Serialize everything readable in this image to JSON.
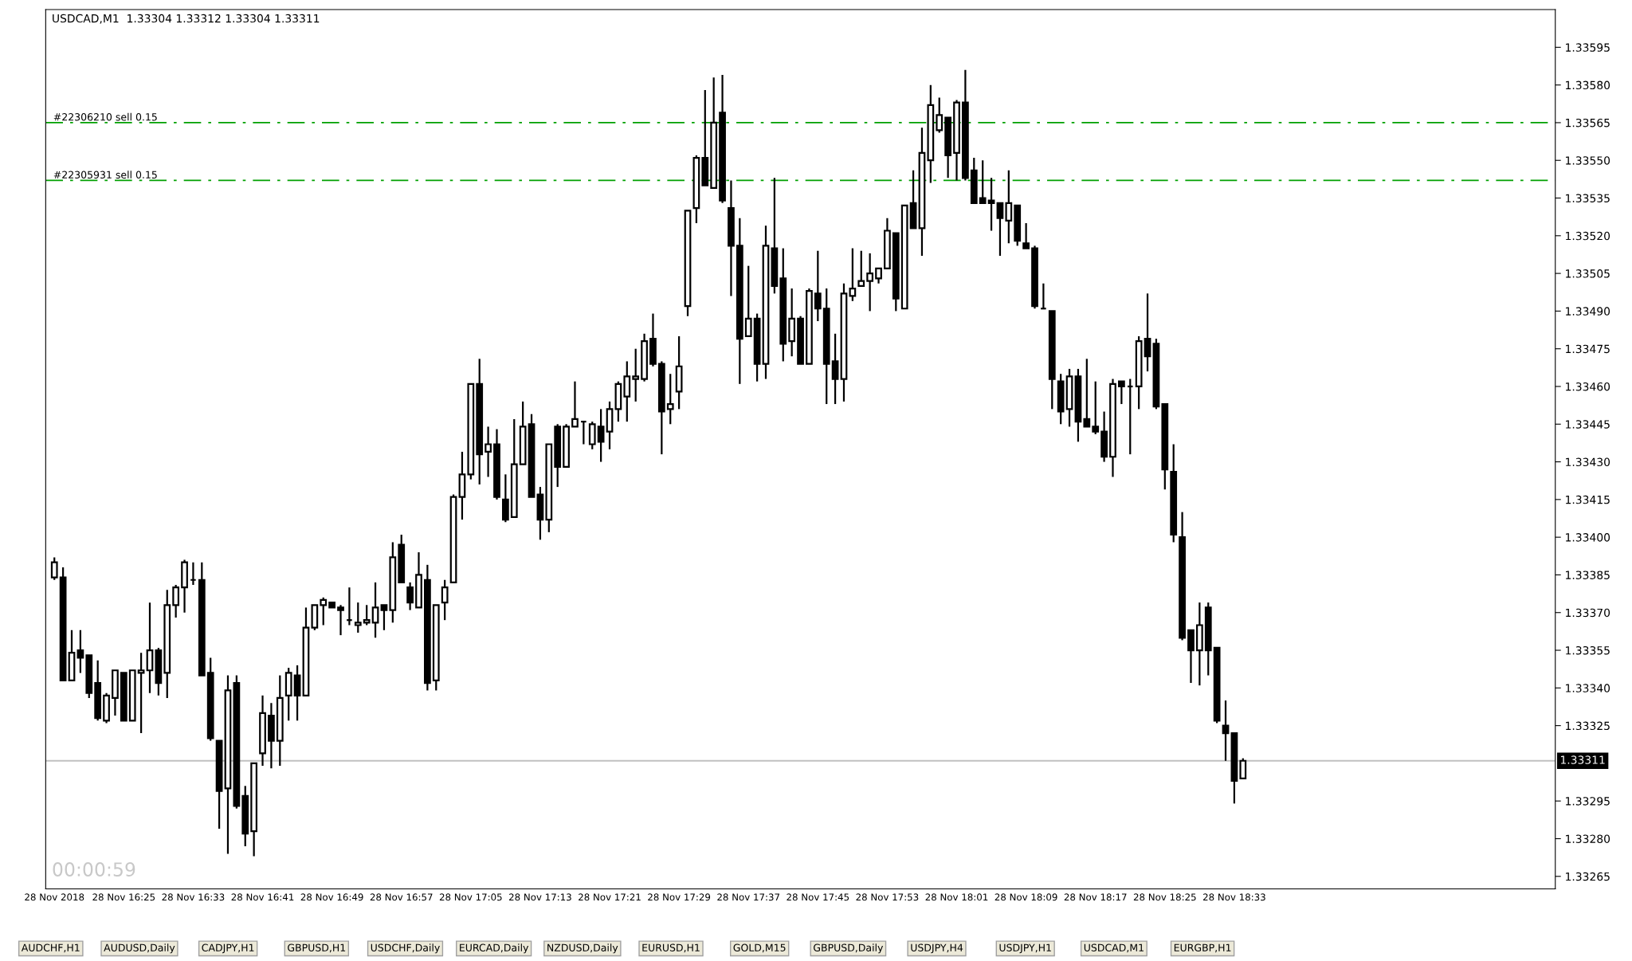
{
  "chart_data": {
    "type": "candlestick",
    "title": "USDCAD,M1  1.33304 1.33312 1.33304 1.33311",
    "x": [
      "2018-11-28T16:17",
      "2018-11-28T16:18",
      "2018-11-28T16:19",
      "2018-11-28T16:20",
      "2018-11-28T16:21",
      "2018-11-28T16:22",
      "2018-11-28T16:23",
      "2018-11-28T16:24",
      "2018-11-28T16:25",
      "2018-11-28T16:26",
      "2018-11-28T16:27",
      "2018-11-28T16:28",
      "2018-11-28T16:29",
      "2018-11-28T16:30",
      "2018-11-28T16:31",
      "2018-11-28T16:32",
      "2018-11-28T16:33",
      "2018-11-28T16:34",
      "2018-11-28T16:35",
      "2018-11-28T16:36",
      "2018-11-28T16:37",
      "2018-11-28T16:38",
      "2018-11-28T16:39",
      "2018-11-28T16:40",
      "2018-11-28T16:41",
      "2018-11-28T16:42",
      "2018-11-28T16:43",
      "2018-11-28T16:44",
      "2018-11-28T16:45",
      "2018-11-28T16:46",
      "2018-11-28T16:47",
      "2018-11-28T16:48",
      "2018-11-28T16:49",
      "2018-11-28T16:50",
      "2018-11-28T16:51",
      "2018-11-28T16:52",
      "2018-11-28T16:53",
      "2018-11-28T16:54",
      "2018-11-28T16:55",
      "2018-11-28T16:56",
      "2018-11-28T16:57",
      "2018-11-28T16:58",
      "2018-11-28T16:59",
      "2018-11-28T17:00",
      "2018-11-28T17:01",
      "2018-11-28T17:02",
      "2018-11-28T17:03",
      "2018-11-28T17:04",
      "2018-11-28T17:05",
      "2018-11-28T17:06",
      "2018-11-28T17:07",
      "2018-11-28T17:08",
      "2018-11-28T17:09",
      "2018-11-28T17:10",
      "2018-11-28T17:11",
      "2018-11-28T17:12",
      "2018-11-28T17:13",
      "2018-11-28T17:14",
      "2018-11-28T17:15",
      "2018-11-28T17:16",
      "2018-11-28T17:17",
      "2018-11-28T17:18",
      "2018-11-28T17:19",
      "2018-11-28T17:20",
      "2018-11-28T17:21",
      "2018-11-28T17:22",
      "2018-11-28T17:23",
      "2018-11-28T17:24",
      "2018-11-28T17:25",
      "2018-11-28T17:26",
      "2018-11-28T17:27",
      "2018-11-28T17:28",
      "2018-11-28T17:29",
      "2018-11-28T17:30",
      "2018-11-28T17:31",
      "2018-11-28T17:32",
      "2018-11-28T17:33",
      "2018-11-28T17:34",
      "2018-11-28T17:35",
      "2018-11-28T17:36",
      "2018-11-28T17:37",
      "2018-11-28T17:38",
      "2018-11-28T17:39",
      "2018-11-28T17:40",
      "2018-11-28T17:41",
      "2018-11-28T17:42",
      "2018-11-28T17:43",
      "2018-11-28T17:44",
      "2018-11-28T17:45",
      "2018-11-28T17:46",
      "2018-11-28T17:47",
      "2018-11-28T17:48",
      "2018-11-28T17:49",
      "2018-11-28T17:50",
      "2018-11-28T17:51",
      "2018-11-28T17:52",
      "2018-11-28T17:53",
      "2018-11-28T17:54",
      "2018-11-28T17:55",
      "2018-11-28T17:56",
      "2018-11-28T17:57",
      "2018-11-28T17:58",
      "2018-11-28T17:59",
      "2018-11-28T18:00",
      "2018-11-28T18:01",
      "2018-11-28T18:02",
      "2018-11-28T18:03",
      "2018-11-28T18:04",
      "2018-11-28T18:05",
      "2018-11-28T18:06",
      "2018-11-28T18:07",
      "2018-11-28T18:08",
      "2018-11-28T18:09",
      "2018-11-28T18:10",
      "2018-11-28T18:11",
      "2018-11-28T18:12",
      "2018-11-28T18:13",
      "2018-11-28T18:14",
      "2018-11-28T18:15",
      "2018-11-28T18:16",
      "2018-11-28T18:17",
      "2018-11-28T18:18",
      "2018-11-28T18:19",
      "2018-11-28T18:20",
      "2018-11-28T18:21",
      "2018-11-28T18:22",
      "2018-11-28T18:23",
      "2018-11-28T18:24",
      "2018-11-28T18:25",
      "2018-11-28T18:26",
      "2018-11-28T18:27",
      "2018-11-28T18:28",
      "2018-11-28T18:29",
      "2018-11-28T18:30",
      "2018-11-28T18:31",
      "2018-11-28T18:32",
      "2018-11-28T18:33",
      "2018-11-28T18:34"
    ],
    "series": [
      {
        "color": "#000000",
        "ohlc": [
          [
            1.33384,
            1.33392,
            1.33383,
            1.3339
          ],
          [
            1.33384,
            1.33388,
            1.33343,
            1.33343
          ],
          [
            1.33343,
            1.33363,
            1.33343,
            1.33354
          ],
          [
            1.33355,
            1.33363,
            1.33346,
            1.33352
          ],
          [
            1.33353,
            1.33353,
            1.33336,
            1.33338
          ],
          [
            1.33342,
            1.33351,
            1.33327,
            1.33328
          ],
          [
            1.33327,
            1.33338,
            1.33326,
            1.33337
          ],
          [
            1.33336,
            1.33347,
            1.33329,
            1.33347
          ],
          [
            1.33346,
            1.33346,
            1.33327,
            1.33327
          ],
          [
            1.33327,
            1.33347,
            1.33327,
            1.33347
          ],
          [
            1.33346,
            1.33354,
            1.33322,
            1.33347
          ],
          [
            1.33347,
            1.33374,
            1.33338,
            1.33355
          ],
          [
            1.33355,
            1.33356,
            1.33337,
            1.33342
          ],
          [
            1.33346,
            1.33379,
            1.33336,
            1.33373
          ],
          [
            1.33373,
            1.33381,
            1.33368,
            1.3338
          ],
          [
            1.3338,
            1.33391,
            1.3337,
            1.3339
          ],
          [
            1.33383,
            1.3339,
            1.33381,
            1.33383
          ],
          [
            1.33383,
            1.3339,
            1.33345,
            1.33345
          ],
          [
            1.33346,
            1.33352,
            1.33319,
            1.3332
          ],
          [
            1.33319,
            1.33319,
            1.33284,
            1.33299
          ],
          [
            1.333,
            1.33345,
            1.33274,
            1.33339
          ],
          [
            1.33342,
            1.33345,
            1.33292,
            1.33293
          ],
          [
            1.33297,
            1.33301,
            1.33277,
            1.33282
          ],
          [
            1.33283,
            1.3331,
            1.33273,
            1.3331
          ],
          [
            1.33314,
            1.33337,
            1.33309,
            1.3333
          ],
          [
            1.33329,
            1.33334,
            1.33308,
            1.33319
          ],
          [
            1.33319,
            1.33345,
            1.33309,
            1.33336
          ],
          [
            1.33337,
            1.33348,
            1.33327,
            1.33346
          ],
          [
            1.33345,
            1.33349,
            1.33327,
            1.33337
          ],
          [
            1.33337,
            1.33372,
            1.33337,
            1.33364
          ],
          [
            1.33364,
            1.33373,
            1.33363,
            1.33373
          ],
          [
            1.33373,
            1.33376,
            1.33365,
            1.33375
          ],
          [
            1.33374,
            1.33374,
            1.33372,
            1.33372
          ],
          [
            1.33372,
            1.33373,
            1.33361,
            1.33371
          ],
          [
            1.33367,
            1.3338,
            1.33365,
            1.33367
          ],
          [
            1.33365,
            1.33374,
            1.33362,
            1.33366
          ],
          [
            1.33366,
            1.33373,
            1.33365,
            1.33367
          ],
          [
            1.33366,
            1.33382,
            1.3336,
            1.33372
          ],
          [
            1.33373,
            1.33373,
            1.33363,
            1.33371
          ],
          [
            1.33371,
            1.33398,
            1.33366,
            1.33392
          ],
          [
            1.33397,
            1.33401,
            1.33382,
            1.33382
          ],
          [
            1.3338,
            1.33382,
            1.33371,
            1.33374
          ],
          [
            1.33372,
            1.33394,
            1.33372,
            1.33385
          ],
          [
            1.33383,
            1.33389,
            1.33339,
            1.33342
          ],
          [
            1.33343,
            1.33373,
            1.33339,
            1.33373
          ],
          [
            1.33374,
            1.33383,
            1.33367,
            1.3338
          ],
          [
            1.33382,
            1.33417,
            1.33382,
            1.33416
          ],
          [
            1.33416,
            1.33434,
            1.33407,
            1.33425
          ],
          [
            1.33425,
            1.33461,
            1.33423,
            1.33461
          ],
          [
            1.33461,
            1.33471,
            1.33421,
            1.33433
          ],
          [
            1.33434,
            1.33444,
            1.33424,
            1.33437
          ],
          [
            1.33437,
            1.33443,
            1.33415,
            1.33416
          ],
          [
            1.33415,
            1.33425,
            1.33406,
            1.33407
          ],
          [
            1.33408,
            1.33447,
            1.33408,
            1.33429
          ],
          [
            1.33429,
            1.33454,
            1.33429,
            1.33444
          ],
          [
            1.33445,
            1.33449,
            1.33416,
            1.33416
          ],
          [
            1.33417,
            1.3342,
            1.33399,
            1.33407
          ],
          [
            1.33407,
            1.33437,
            1.33402,
            1.33437
          ],
          [
            1.33444,
            1.33445,
            1.3342,
            1.33428
          ],
          [
            1.33428,
            1.33445,
            1.33428,
            1.33444
          ],
          [
            1.33444,
            1.33462,
            1.33444,
            1.33447
          ],
          [
            1.33446,
            1.33446,
            1.33437,
            1.33446
          ],
          [
            1.33437,
            1.33446,
            1.33435,
            1.33445
          ],
          [
            1.33444,
            1.33451,
            1.3343,
            1.33438
          ],
          [
            1.33442,
            1.33454,
            1.33435,
            1.33451
          ],
          [
            1.33451,
            1.33462,
            1.33446,
            1.33461
          ],
          [
            1.33456,
            1.3347,
            1.33446,
            1.33464
          ],
          [
            1.33463,
            1.33475,
            1.33454,
            1.33464
          ],
          [
            1.33463,
            1.33481,
            1.33462,
            1.33478
          ],
          [
            1.33479,
            1.33489,
            1.33468,
            1.33469
          ],
          [
            1.33469,
            1.3347,
            1.33433,
            1.3345
          ],
          [
            1.33451,
            1.33465,
            1.33445,
            1.33453
          ],
          [
            1.33458,
            1.3348,
            1.33451,
            1.33468
          ],
          [
            1.33492,
            1.3353,
            1.33488,
            1.3353
          ],
          [
            1.33531,
            1.33552,
            1.33525,
            1.33551
          ],
          [
            1.33551,
            1.33578,
            1.3354,
            1.3354
          ],
          [
            1.33539,
            1.33583,
            1.33539,
            1.33565
          ],
          [
            1.33569,
            1.33584,
            1.33533,
            1.33534
          ],
          [
            1.33531,
            1.33542,
            1.33496,
            1.33516
          ],
          [
            1.33516,
            1.33527,
            1.33461,
            1.33479
          ],
          [
            1.3348,
            1.33508,
            1.3348,
            1.33487
          ],
          [
            1.33487,
            1.33489,
            1.33462,
            1.33469
          ],
          [
            1.33469,
            1.33524,
            1.33463,
            1.33516
          ],
          [
            1.33515,
            1.33543,
            1.33497,
            1.335
          ],
          [
            1.33503,
            1.33515,
            1.3347,
            1.33477
          ],
          [
            1.33478,
            1.33499,
            1.33472,
            1.33487
          ],
          [
            1.33487,
            1.33488,
            1.33469,
            1.33469
          ],
          [
            1.33469,
            1.33499,
            1.33469,
            1.33498
          ],
          [
            1.33497,
            1.33514,
            1.33486,
            1.33491
          ],
          [
            1.33491,
            1.33499,
            1.33453,
            1.33469
          ],
          [
            1.3347,
            1.33481,
            1.33453,
            1.33463
          ],
          [
            1.33463,
            1.33501,
            1.33454,
            1.33497
          ],
          [
            1.33496,
            1.33515,
            1.33494,
            1.33499
          ],
          [
            1.335,
            1.33514,
            1.335,
            1.33502
          ],
          [
            1.33502,
            1.33513,
            1.3349,
            1.33505
          ],
          [
            1.33503,
            1.33507,
            1.33501,
            1.33507
          ],
          [
            1.33507,
            1.33527,
            1.33507,
            1.33522
          ],
          [
            1.33521,
            1.33521,
            1.3349,
            1.33495
          ],
          [
            1.33491,
            1.33532,
            1.33491,
            1.33532
          ],
          [
            1.33533,
            1.33546,
            1.33523,
            1.33523
          ],
          [
            1.33523,
            1.33563,
            1.33512,
            1.33553
          ],
          [
            1.3355,
            1.3358,
            1.33541,
            1.33572
          ],
          [
            1.33562,
            1.33575,
            1.33561,
            1.33568
          ],
          [
            1.33567,
            1.33567,
            1.33543,
            1.33552
          ],
          [
            1.33553,
            1.33574,
            1.33542,
            1.33573
          ],
          [
            1.33573,
            1.33586,
            1.33542,
            1.33543
          ],
          [
            1.33546,
            1.33551,
            1.33533,
            1.33533
          ],
          [
            1.33535,
            1.3355,
            1.33533,
            1.33533
          ],
          [
            1.33534,
            1.33543,
            1.33522,
            1.33533
          ],
          [
            1.33533,
            1.33533,
            1.33512,
            1.33527
          ],
          [
            1.33526,
            1.33546,
            1.33517,
            1.33533
          ],
          [
            1.33532,
            1.33532,
            1.33516,
            1.33518
          ],
          [
            1.33517,
            1.33525,
            1.33515,
            1.33515
          ],
          [
            1.33515,
            1.33516,
            1.33491,
            1.33492
          ],
          [
            1.33491,
            1.33501,
            1.33491,
            1.33491
          ],
          [
            1.3349,
            1.3349,
            1.33451,
            1.33463
          ],
          [
            1.33462,
            1.33465,
            1.33445,
            1.3345
          ],
          [
            1.33451,
            1.33467,
            1.33444,
            1.33464
          ],
          [
            1.33464,
            1.33467,
            1.33438,
            1.33446
          ],
          [
            1.33447,
            1.33471,
            1.33444,
            1.33444
          ],
          [
            1.33444,
            1.33462,
            1.33441,
            1.33442
          ],
          [
            1.33442,
            1.3345,
            1.3343,
            1.33432
          ],
          [
            1.33432,
            1.33463,
            1.33424,
            1.33461
          ],
          [
            1.33462,
            1.33462,
            1.33453,
            1.3346
          ],
          [
            1.3346,
            1.33463,
            1.33433,
            1.3346
          ],
          [
            1.3346,
            1.3348,
            1.33451,
            1.33478
          ],
          [
            1.33479,
            1.33497,
            1.33466,
            1.33472
          ],
          [
            1.33477,
            1.33479,
            1.33451,
            1.33452
          ],
          [
            1.33453,
            1.33453,
            1.33419,
            1.33427
          ],
          [
            1.33426,
            1.33437,
            1.33398,
            1.33401
          ],
          [
            1.334,
            1.3341,
            1.33359,
            1.3336
          ],
          [
            1.33363,
            1.33363,
            1.33342,
            1.33355
          ],
          [
            1.33355,
            1.33374,
            1.33341,
            1.33365
          ],
          [
            1.33372,
            1.33374,
            1.33345,
            1.33355
          ],
          [
            1.33356,
            1.33356,
            1.33326,
            1.33327
          ],
          [
            1.33325,
            1.33335,
            1.33311,
            1.33322
          ],
          [
            1.33322,
            1.33322,
            1.33294,
            1.33303
          ],
          [
            1.33304,
            1.33312,
            1.33304,
            1.33311
          ]
        ]
      }
    ],
    "xlim": [
      "2018-11-28T16:16",
      "2018-11-28T19:10"
    ],
    "xticks": [
      {
        "value": "2018-11-28T16:17",
        "label": "28 Nov 2018"
      },
      {
        "value": "2018-11-28T16:25",
        "label": "28 Nov 16:25"
      },
      {
        "value": "2018-11-28T16:33",
        "label": "28 Nov 16:33"
      },
      {
        "value": "2018-11-28T16:41",
        "label": "28 Nov 16:41"
      },
      {
        "value": "2018-11-28T16:49",
        "label": "28 Nov 16:49"
      },
      {
        "value": "2018-11-28T16:57",
        "label": "28 Nov 16:57"
      },
      {
        "value": "2018-11-28T17:05",
        "label": "28 Nov 17:05"
      },
      {
        "value": "2018-11-28T17:13",
        "label": "28 Nov 17:13"
      },
      {
        "value": "2018-11-28T17:21",
        "label": "28 Nov 17:21"
      },
      {
        "value": "2018-11-28T17:29",
        "label": "28 Nov 17:29"
      },
      {
        "value": "2018-11-28T17:37",
        "label": "28 Nov 17:37"
      },
      {
        "value": "2018-11-28T17:45",
        "label": "28 Nov 17:45"
      },
      {
        "value": "2018-11-28T17:53",
        "label": "28 Nov 17:53"
      },
      {
        "value": "2018-11-28T18:01",
        "label": "28 Nov 18:01"
      },
      {
        "value": "2018-11-28T18:09",
        "label": "28 Nov 18:09"
      },
      {
        "value": "2018-11-28T18:17",
        "label": "28 Nov 18:17"
      },
      {
        "value": "2018-11-28T18:25",
        "label": "28 Nov 18:25"
      },
      {
        "value": "2018-11-28T18:33",
        "label": "28 Nov 18:33"
      }
    ],
    "ylim": [
      1.3326,
      1.3361
    ],
    "yticks": [
      1.33265,
      {
        "value": 1.3328,
        "label": "1.33280"
      },
      1.33295,
      1.33325,
      {
        "value": 1.3334,
        "label": "1.33340"
      },
      1.33355,
      {
        "value": 1.3337,
        "label": "1.33370"
      },
      1.33385,
      {
        "value": 1.334,
        "label": "1.33400"
      },
      1.33415,
      {
        "value": 1.3343,
        "label": "1.33430"
      },
      1.33445,
      {
        "value": 1.3346,
        "label": "1.33460"
      },
      1.33475,
      {
        "value": 1.3349,
        "label": "1.33490"
      },
      1.33505,
      {
        "value": 1.3352,
        "label": "1.33520"
      },
      1.33535,
      {
        "value": 1.3355,
        "label": "1.33550"
      },
      1.33565,
      {
        "value": 1.3358,
        "label": "1.33580"
      },
      1.33595
    ],
    "ref_lines": [
      {
        "axis": "y",
        "value": 1.33565,
        "label": "#22306210 sell 0.15",
        "color": "#00a000",
        "line_style": "dashdot"
      },
      {
        "axis": "y",
        "value": 1.33542,
        "label": "#22305931 sell 0.15",
        "color": "#00a000",
        "line_style": "dashdot"
      },
      {
        "axis": "y",
        "value": 1.33311,
        "label": "1.33311",
        "color": "#c0c0c0",
        "line_style": "solid"
      }
    ],
    "annotations": [
      "00:00:59",
      "AUDCHF,H1",
      "AUDUSD,Daily",
      "CADJPY,H1",
      "GBPUSD,H1",
      "USDCHF,Daily",
      "EURCAD,Daily",
      "NZDUSD,Daily",
      "EURUSD,H1",
      "GOLD,M15",
      "GBPUSD,Daily",
      "USDJPY,H4",
      "USDJPY,H1",
      "USDCAD,M1",
      "EURGBP,H1"
    ],
    "grid": false,
    "legend": false
  }
}
